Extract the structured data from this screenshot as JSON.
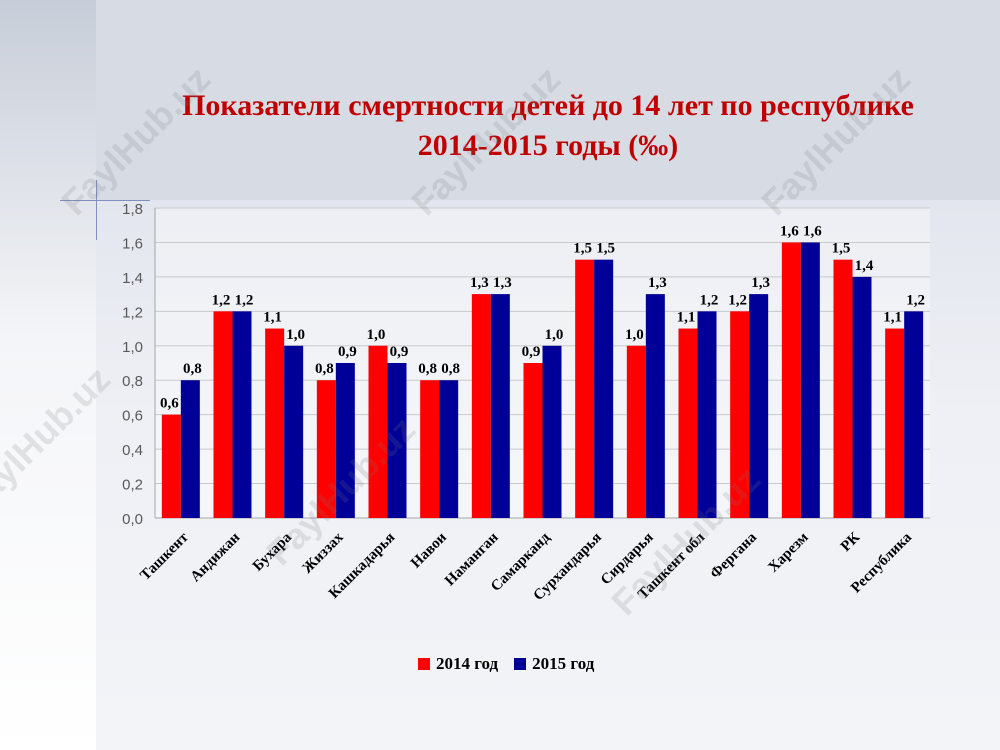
{
  "title_line1": "Показатели смертности детей до 14 лет по республике",
  "title_line2": "2014-2015 годы (‰)",
  "watermark": "FaylHub.uz",
  "colors": {
    "series_2014": "#ff0000",
    "series_2015": "#000099"
  },
  "chart_data": {
    "type": "bar",
    "title": "Показатели смертности детей до 14 лет по республике 2014-2015 годы (‰)",
    "categories": [
      "Ташкент",
      "Андижан",
      "Бухара",
      "Жиззах",
      "Кашкадарья",
      "Навои",
      "Наманган",
      "Самарканд",
      "Сурхандарья",
      "Сирдарья",
      "Ташкент обл",
      "Фергана",
      "Харезм",
      "РК",
      "Республика"
    ],
    "series": [
      {
        "name": "2014 год",
        "values": [
          0.6,
          1.2,
          1.1,
          0.8,
          1.0,
          0.8,
          1.3,
          0.9,
          1.5,
          1.0,
          1.1,
          1.2,
          1.6,
          1.5,
          1.1
        ],
        "labels": [
          "0,6",
          "1,2",
          "1,1",
          "0,8",
          "1,0",
          "0,8",
          "1,3",
          "0,9",
          "1,5",
          "1,0",
          "1,1",
          "1,2",
          "1,6",
          "1,5",
          "1,1"
        ]
      },
      {
        "name": "2015 год",
        "values": [
          0.8,
          1.2,
          1.0,
          0.9,
          0.9,
          0.8,
          1.3,
          1.0,
          1.5,
          1.3,
          1.2,
          1.3,
          1.6,
          1.4,
          1.2
        ],
        "labels": [
          "0,8",
          "1,2",
          "1,0",
          "0,9",
          "0,9",
          "0,8",
          "1,3",
          "1,0",
          "1,5",
          "1,3",
          "1,2",
          "1,3",
          "1,6",
          "1,4",
          "1,2"
        ]
      }
    ],
    "yticks": [
      "0,0",
      "0,2",
      "0,4",
      "0,6",
      "0,8",
      "1,0",
      "1,2",
      "1,4",
      "1,6",
      "1,8"
    ],
    "ylim": [
      0,
      1.8
    ],
    "grid": true,
    "legend_position": "bottom",
    "xlabel": "",
    "ylabel": ""
  }
}
